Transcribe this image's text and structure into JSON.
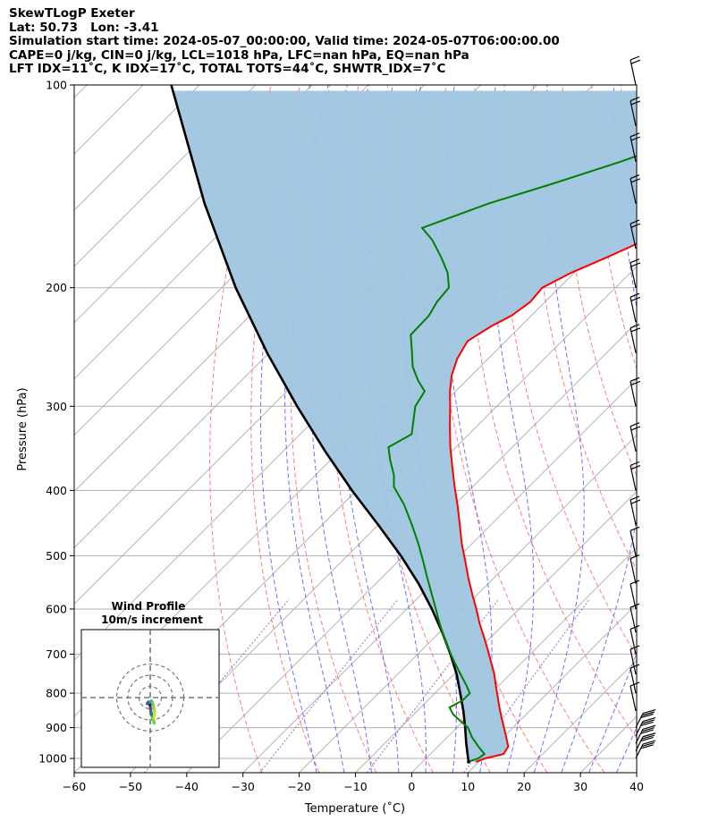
{
  "header": {
    "line1": "SkewTLogP Exeter",
    "line2": "Lat: 50.73   Lon: -3.41",
    "line3": "Simulation start time: 2024-05-07_00:00:00, Valid time: 2024-05-07T06:00:00.00",
    "line4": "CAPE=0 j/kg, CIN=0 j/kg, LCL=1018 hPa, LFC=nan hPa, EQ=nan hPa",
    "line5": "LFT IDX=11˚C, K IDX=17˚C, TOTAL TOTS=44˚C, SHWTR_IDX=7˚C"
  },
  "chart_data": {
    "type": "skew-t log-p",
    "xlabel": "Temperature (˚C)",
    "ylabel": "Pressure (hPa)",
    "xlim": [
      -60,
      40
    ],
    "ylim": [
      1050,
      100
    ],
    "skew_deg": 45,
    "log_pressure": true,
    "x_ticks": [
      "−60",
      "−50",
      "−40",
      "−30",
      "−20",
      "−10",
      "0",
      "10",
      "20",
      "30",
      "40"
    ],
    "x_tick_values": [
      -60,
      -50,
      -40,
      -30,
      -20,
      -10,
      0,
      10,
      20,
      30,
      40
    ],
    "y_ticks": [
      "1000",
      "900",
      "800",
      "700",
      "600",
      "500",
      "400",
      "300",
      "200",
      "100"
    ],
    "y_tick_values": [
      1000,
      900,
      800,
      700,
      600,
      500,
      400,
      300,
      200,
      100
    ],
    "grid": true,
    "colors": {
      "temperature": "#ff0000",
      "dewpoint": "#008000",
      "parcel": "#000000",
      "cape_fill": "#9fc5e0",
      "dry_adiabats": "#ff6666",
      "moist_adiabats": "#5555ff",
      "mixing_ratio": "#9c55c4",
      "isotherm_grid": "#aaaaaa"
    },
    "temperature": {
      "p": [
        1012,
        1000,
        985,
        960,
        930,
        900,
        870,
        840,
        810,
        780,
        750,
        720,
        690,
        660,
        630,
        600,
        570,
        540,
        510,
        480,
        450,
        420,
        395,
        370,
        345,
        320,
        300,
        285,
        270,
        255,
        240,
        228,
        220,
        210,
        200,
        190,
        180,
        170,
        163,
        150,
        140,
        130,
        120,
        110,
        100
      ],
      "t": [
        9.5,
        10.5,
        13,
        12.5,
        10.5,
        8.4,
        6.2,
        4.0,
        1.8,
        -0.5,
        -2.8,
        -5.5,
        -8.3,
        -11.3,
        -14.5,
        -17.6,
        -21,
        -24.5,
        -28,
        -31.8,
        -35.5,
        -39.5,
        -43.2,
        -47,
        -51,
        -55,
        -58.3,
        -61,
        -63.5,
        -65.5,
        -66.8,
        -65.2,
        -63.5,
        -62.6,
        -63,
        -60.5,
        -56.8,
        -53.2,
        -50.6,
        -47.5,
        -45.5,
        -42.8,
        -40.6,
        -37.6,
        -35.5
      ]
    },
    "dewpoint": {
      "p": [
        1012,
        1000,
        985,
        960,
        930,
        900,
        880,
        860,
        840,
        820,
        800,
        780,
        750,
        720,
        690,
        660,
        630,
        600,
        570,
        540,
        510,
        480,
        450,
        420,
        395,
        380,
        360,
        345,
        330,
        310,
        300,
        285,
        275,
        262,
        248,
        235,
        220,
        210,
        200,
        190,
        180,
        170,
        163,
        150,
        140,
        130,
        120,
        110,
        100
      ],
      "t": [
        8,
        9.3,
        9.6,
        7.2,
        4.4,
        2,
        -0.5,
        -3,
        -4.9,
        -3.8,
        -3.8,
        -5.7,
        -8.8,
        -12,
        -15.2,
        -18.4,
        -21.6,
        -24.8,
        -28.2,
        -31.8,
        -35.5,
        -39.5,
        -44,
        -49,
        -54,
        -56,
        -59.5,
        -62,
        -60.2,
        -63,
        -64.5,
        -65.5,
        -68.5,
        -72,
        -75,
        -78,
        -78.2,
        -79.2,
        -79.6,
        -82.5,
        -86.5,
        -91,
        -95,
        -87.5,
        -79.5,
        -71.5,
        -63.8,
        -58.5,
        -53
      ]
    },
    "parcel": {
      "p": [
        1012,
        1000,
        950,
        900,
        850,
        800,
        750,
        700,
        650,
        600,
        550,
        500,
        450,
        400,
        350,
        300,
        250,
        200,
        150,
        100
      ],
      "t": [
        8.2,
        7.5,
        4.5,
        1.5,
        -1.8,
        -5.5,
        -9.5,
        -14.2,
        -19.5,
        -25.5,
        -32.4,
        -40.5,
        -50,
        -60.8,
        -72.5,
        -85.5,
        -100.3,
        -117.5,
        -138,
        -165
      ]
    },
    "wind_barbs_levels_hPa": [
      1000,
      975,
      950,
      925,
      900,
      850,
      800,
      750,
      700,
      650,
      600,
      550,
      500,
      450,
      400,
      350,
      300,
      250,
      225,
      200,
      175,
      150,
      130,
      115,
      100
    ],
    "hodograph": {
      "title": "Wind Profile",
      "subtitle": "10m/s increment",
      "rings_mps": [
        10,
        20,
        30
      ],
      "u": [
        2.5,
        2.0,
        1.4,
        1.0,
        0.5,
        0.2,
        0.0,
        -0.2,
        -0.4,
        0.2,
        -0.5,
        -1.5,
        -2.2,
        -2.6,
        -2.6,
        -1.6,
        -0.8,
        -0.2,
        0.6,
        1.0,
        2.0,
        3.0,
        3.8,
        4.0,
        3.8,
        3.2,
        3.0,
        3.0,
        3.2,
        3.6
      ],
      "v": [
        -20,
        -18,
        -16,
        -14,
        -12,
        -10,
        -8,
        -7,
        -6,
        -5.0,
        -4.2,
        -4.0,
        -4.8,
        -5.4,
        -5.0,
        -4.6,
        -4.2,
        -4.2,
        -3.8,
        -3.0,
        -4.5,
        -8,
        -12,
        -14,
        -16,
        -18,
        -19.5,
        -20,
        -21.5,
        -23
      ]
    }
  }
}
